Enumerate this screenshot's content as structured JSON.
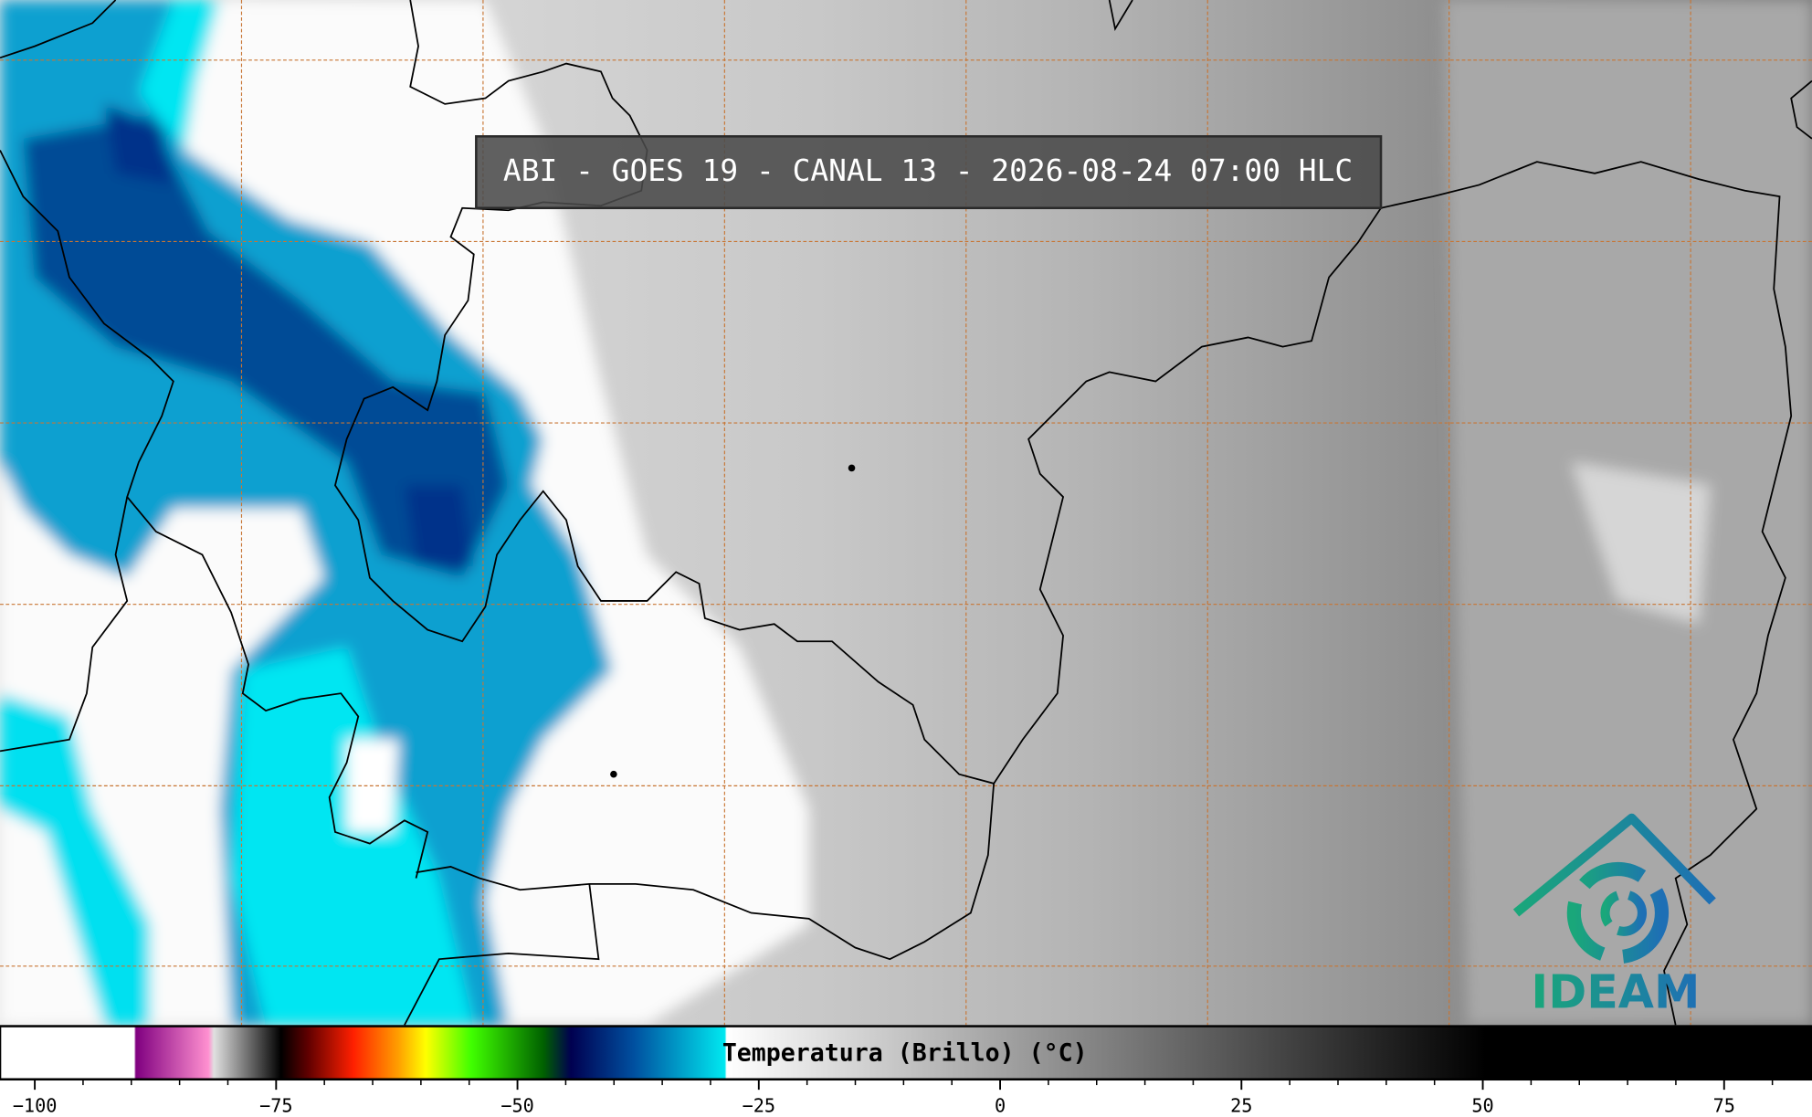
{
  "title": "ABI - GOES 19 - CANAL 13 - 2026-08-24 07:00 HLC",
  "logo": "IDEAM",
  "colorbar": {
    "label": "Temperatura (Brillo) (°C)",
    "xlim": [
      -103.6,
      84.1
    ],
    "xticks": [
      {
        "value": -100,
        "label": "−100"
      },
      {
        "value": -75,
        "label": "−75"
      },
      {
        "value": -50,
        "label": "−50"
      },
      {
        "value": -25,
        "label": "−25"
      },
      0,
      25,
      50,
      75
    ],
    "minor_xticks": [
      -95,
      -90,
      -85,
      -80,
      -70,
      -65,
      -60,
      -55,
      -45,
      -40,
      -35,
      -30,
      -20,
      -15,
      -10,
      -5,
      5,
      10,
      15,
      20,
      30,
      35,
      40,
      45,
      55,
      60,
      65,
      70,
      80
    ]
  }
}
